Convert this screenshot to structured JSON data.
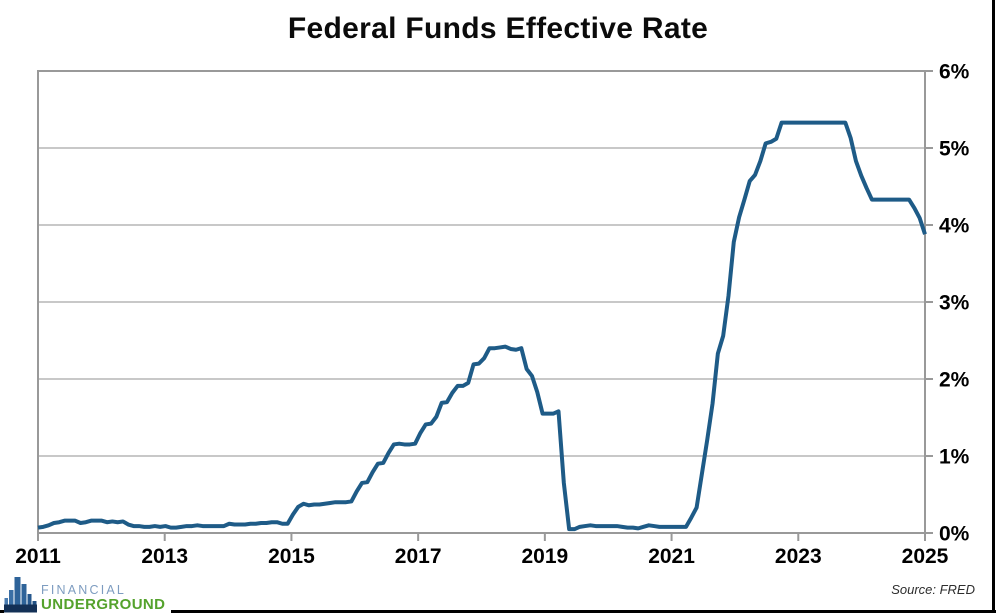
{
  "header": {
    "title": "Federal Funds Effective Rate"
  },
  "chart_data": {
    "type": "line",
    "title": "Federal Funds Effective Rate",
    "ylabel": "",
    "xlabel": "",
    "ylim": [
      0,
      6
    ],
    "y_unit": "%",
    "grid": "horizontal",
    "legend": "none",
    "x_tick_labels": [
      "2011",
      "2013",
      "2015",
      "2017",
      "2019",
      "2021",
      "2023",
      "2025"
    ],
    "y_tick_labels": [
      "0%",
      "1%",
      "2%",
      "3%",
      "4%",
      "5%",
      "6%"
    ],
    "line_color": "#1e5b87",
    "gridline_color": "#c8c8c8",
    "border_color": "#999999",
    "series": [
      {
        "name": "Federal Funds Effective Rate",
        "frequency": "monthly",
        "start": "2011-12",
        "end": "2025-11",
        "unit": "percent",
        "values": [
          0.07,
          0.08,
          0.1,
          0.13,
          0.14,
          0.16,
          0.16,
          0.16,
          0.13,
          0.14,
          0.16,
          0.16,
          0.16,
          0.14,
          0.15,
          0.14,
          0.15,
          0.11,
          0.09,
          0.09,
          0.08,
          0.08,
          0.09,
          0.08,
          0.09,
          0.07,
          0.07,
          0.08,
          0.09,
          0.09,
          0.1,
          0.09,
          0.09,
          0.09,
          0.09,
          0.09,
          0.12,
          0.11,
          0.11,
          0.11,
          0.12,
          0.12,
          0.13,
          0.13,
          0.14,
          0.14,
          0.12,
          0.12,
          0.24,
          0.34,
          0.38,
          0.36,
          0.37,
          0.37,
          0.38,
          0.39,
          0.4,
          0.4,
          0.4,
          0.41,
          0.54,
          0.65,
          0.66,
          0.79,
          0.9,
          0.91,
          1.04,
          1.15,
          1.16,
          1.15,
          1.15,
          1.16,
          1.3,
          1.41,
          1.42,
          1.51,
          1.69,
          1.7,
          1.82,
          1.91,
          1.91,
          1.95,
          2.19,
          2.2,
          2.27,
          2.4,
          2.4,
          2.41,
          2.42,
          2.39,
          2.38,
          2.4,
          2.13,
          2.04,
          1.83,
          1.55,
          1.55,
          1.55,
          1.58,
          0.65,
          0.05,
          0.05,
          0.08,
          0.09,
          0.1,
          0.09,
          0.09,
          0.09,
          0.09,
          0.09,
          0.08,
          0.07,
          0.07,
          0.06,
          0.08,
          0.1,
          0.09,
          0.08,
          0.08,
          0.08,
          0.08,
          0.08,
          0.08,
          0.2,
          0.33,
          0.77,
          1.21,
          1.68,
          2.33,
          2.56,
          3.08,
          3.78,
          4.1,
          4.33,
          4.57,
          4.65,
          4.83,
          5.06,
          5.08,
          5.12,
          5.33,
          5.33,
          5.33,
          5.33,
          5.33,
          5.33,
          5.33,
          5.33,
          5.33,
          5.33,
          5.33,
          5.33,
          5.33,
          5.13,
          4.83,
          4.64,
          4.48,
          4.33,
          4.33,
          4.33,
          4.33,
          4.33,
          4.33,
          4.33,
          4.33,
          4.22,
          4.09,
          3.88
        ]
      }
    ]
  },
  "footer": {
    "source_note": "Source: FRED",
    "logo": {
      "line1": "FINANCIAL",
      "line2": "UNDERGROUND",
      "line1_color": "#7d9cc0",
      "line2_color": "#54a22c"
    },
    "bottom_bar_color": "#000000",
    "right_bar_color": "#000000"
  }
}
